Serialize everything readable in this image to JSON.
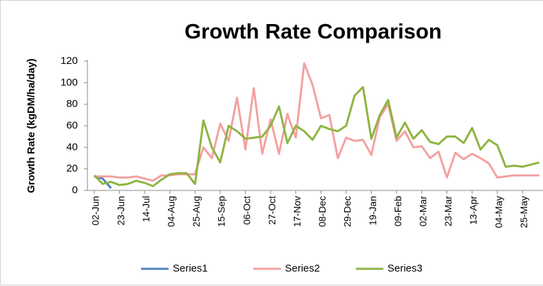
{
  "chart_data": {
    "type": "line",
    "title": "Growth Rate Comparison",
    "y_label": "Growth Rate (kgDM/ha/day)",
    "categories": [
      "02-Jun",
      null,
      null,
      "23-Jun",
      null,
      null,
      "14-Jul",
      null,
      null,
      "04-Aug",
      null,
      null,
      "25-Aug",
      null,
      null,
      "15-Sep",
      null,
      null,
      "06-Oct",
      null,
      null,
      "27-Oct",
      null,
      null,
      "17-Nov",
      null,
      null,
      "08-Dec",
      null,
      null,
      "29-Dec",
      null,
      null,
      "19-Jan",
      null,
      null,
      "09-Feb",
      null,
      null,
      "02-Mar",
      null,
      null,
      "23-Mar",
      null,
      null,
      "13-Apr",
      null,
      null,
      "04-May",
      null,
      null,
      "25-May",
      null,
      null
    ],
    "series": [
      {
        "name": "Series1",
        "color": "#4f81bd",
        "values": [
          13,
          11,
          2,
          null,
          null,
          null,
          null,
          null,
          null,
          null,
          null,
          null,
          null,
          null,
          null,
          null,
          null,
          null,
          null,
          null,
          null,
          null,
          null,
          null,
          null,
          null,
          null,
          null,
          null,
          null,
          null,
          null,
          null,
          null,
          null,
          null,
          null,
          null,
          null,
          null,
          null,
          null,
          null,
          null,
          null,
          null,
          null,
          null,
          null,
          null,
          null,
          null,
          null,
          null
        ]
      },
      {
        "name": "Series2",
        "color": "#f4a0a0",
        "values": [
          13,
          13,
          13,
          12,
          12,
          13,
          11,
          9,
          14,
          14,
          15,
          15,
          15,
          40,
          30,
          62,
          46,
          86,
          38,
          95,
          34,
          66,
          34,
          71,
          49,
          118,
          98,
          67,
          70,
          30,
          49,
          46,
          47,
          33,
          68,
          80,
          46,
          55,
          40,
          41,
          30,
          36,
          12,
          35,
          29,
          34,
          30,
          25,
          12,
          13,
          14,
          14,
          14,
          14
        ]
      },
      {
        "name": "Series3",
        "color": "#8db440",
        "values": [
          14,
          6,
          8,
          5,
          6,
          9,
          7,
          4,
          10,
          15,
          16,
          16,
          6,
          65,
          40,
          26,
          60,
          55,
          48,
          49,
          50,
          60,
          78,
          44,
          60,
          55,
          47,
          60,
          57,
          55,
          60,
          88,
          96,
          48,
          70,
          84,
          49,
          63,
          48,
          56,
          45,
          43,
          50,
          50,
          44,
          58,
          38,
          47,
          42,
          22,
          23,
          22,
          24,
          26
        ]
      }
    ],
    "ylim": [
      0,
      120
    ],
    "yticks": [
      0,
      20,
      40,
      60,
      80,
      100,
      120
    ],
    "grid": false,
    "legend": "bottom"
  }
}
